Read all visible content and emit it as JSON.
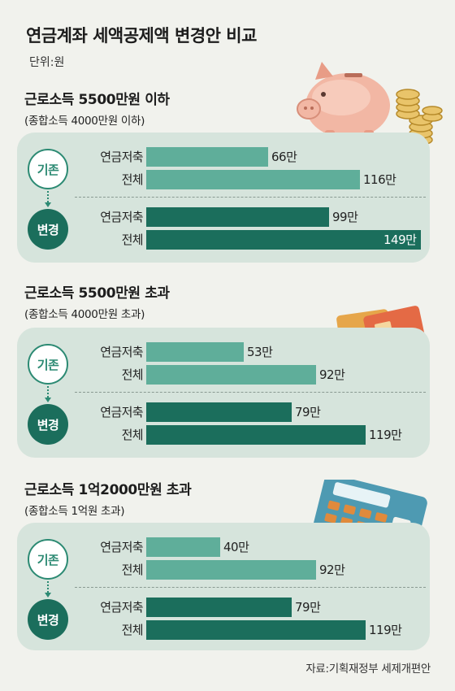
{
  "title": "연금계좌 세액공제액 변경안 비교",
  "unit": "단위:원",
  "source": "자료:기획재정부 세제개편안",
  "colors": {
    "before_bar": "#5fae9a",
    "after_bar": "#1b6e5c",
    "panel": "#d6e4dc"
  },
  "icons": [
    "piggy-bank-icon",
    "coins-icon",
    "credit-cards-icon",
    "calculator-icon"
  ],
  "chart_data": [
    {
      "type": "bar",
      "title": "근로소득 5500만원 이하",
      "subtitle": "(종합소득 4000만원 이하)",
      "groups": [
        {
          "name": "기존",
          "bars": [
            {
              "label": "연금저축",
              "value": 66,
              "text": "66만"
            },
            {
              "label": "전체",
              "value": 116,
              "text": "116만"
            }
          ]
        },
        {
          "name": "변경",
          "bars": [
            {
              "label": "연금저축",
              "value": 99,
              "text": "99만"
            },
            {
              "label": "전체",
              "value": 149,
              "text": "149만"
            }
          ]
        }
      ]
    },
    {
      "type": "bar",
      "title": "근로소득 5500만원 초과",
      "subtitle": "(종합소득 4000만원 초과)",
      "groups": [
        {
          "name": "기존",
          "bars": [
            {
              "label": "연금저축",
              "value": 53,
              "text": "53만"
            },
            {
              "label": "전체",
              "value": 92,
              "text": "92만"
            }
          ]
        },
        {
          "name": "변경",
          "bars": [
            {
              "label": "연금저축",
              "value": 79,
              "text": "79만"
            },
            {
              "label": "전체",
              "value": 119,
              "text": "119만"
            }
          ]
        }
      ]
    },
    {
      "type": "bar",
      "title": "근로소득 1억2000만원 초과",
      "subtitle": "(종합소득 1억원 초과)",
      "groups": [
        {
          "name": "기존",
          "bars": [
            {
              "label": "연금저축",
              "value": 40,
              "text": "40만"
            },
            {
              "label": "전체",
              "value": 92,
              "text": "92만"
            }
          ]
        },
        {
          "name": "변경",
          "bars": [
            {
              "label": "연금저축",
              "value": 79,
              "text": "79만"
            },
            {
              "label": "전체",
              "value": 119,
              "text": "119만"
            }
          ]
        }
      ]
    }
  ]
}
